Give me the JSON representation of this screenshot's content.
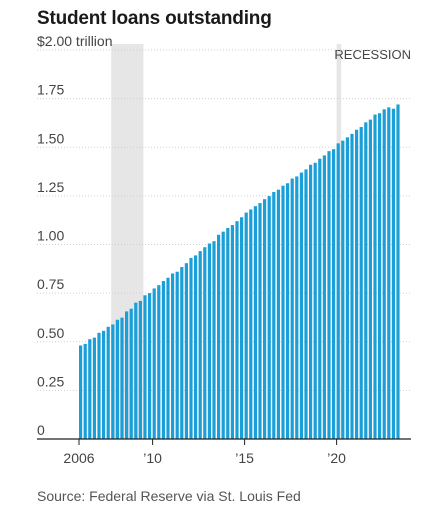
{
  "title": "Student loans outstanding",
  "source": "Source: Federal Reserve via St. Louis Fed",
  "colors": {
    "bar": "#1a9fd9",
    "recession": "#e6e6e6",
    "grid": "#cfcfcf",
    "axis": "#222222"
  },
  "chart_data": {
    "type": "bar",
    "title": "Student loans outstanding",
    "ylabel": "$ trillion",
    "ylim": [
      0,
      2.0
    ],
    "yticks": [
      {
        "value": 2.0,
        "label": "$2.00 trillion"
      },
      {
        "value": 1.75,
        "label": "1.75"
      },
      {
        "value": 1.5,
        "label": "1.50"
      },
      {
        "value": 1.25,
        "label": "1.25"
      },
      {
        "value": 1.0,
        "label": "1.00"
      },
      {
        "value": 0.75,
        "label": "0.75"
      },
      {
        "value": 0.5,
        "label": "0.50"
      },
      {
        "value": 0.25,
        "label": "0.25"
      },
      {
        "value": 0,
        "label": "0"
      }
    ],
    "x_start": 2006,
    "periods_per_year": 4,
    "xticks": [
      {
        "year": 2006,
        "label": "2006"
      },
      {
        "year": 2010,
        "label": "’10"
      },
      {
        "year": 2015,
        "label": "’15"
      },
      {
        "year": 2020,
        "label": "’20"
      }
    ],
    "recessions": [
      {
        "start": 2007.75,
        "end": 2009.5,
        "label": ""
      },
      {
        "start": 2020.0,
        "end": 2020.25,
        "label": "RECESSION"
      }
    ],
    "values": [
      0.481,
      0.489,
      0.513,
      0.521,
      0.546,
      0.556,
      0.577,
      0.589,
      0.613,
      0.624,
      0.656,
      0.67,
      0.701,
      0.71,
      0.739,
      0.75,
      0.774,
      0.791,
      0.812,
      0.829,
      0.851,
      0.86,
      0.884,
      0.904,
      0.931,
      0.944,
      0.966,
      0.986,
      1.005,
      1.017,
      1.05,
      1.066,
      1.085,
      1.1,
      1.12,
      1.14,
      1.164,
      1.18,
      1.197,
      1.213,
      1.233,
      1.249,
      1.27,
      1.282,
      1.302,
      1.315,
      1.339,
      1.35,
      1.37,
      1.386,
      1.41,
      1.42,
      1.441,
      1.458,
      1.48,
      1.49,
      1.52,
      1.534,
      1.551,
      1.569,
      1.59,
      1.604,
      1.628,
      1.642,
      1.668,
      1.675,
      1.695,
      1.705,
      1.698,
      1.72
    ]
  }
}
